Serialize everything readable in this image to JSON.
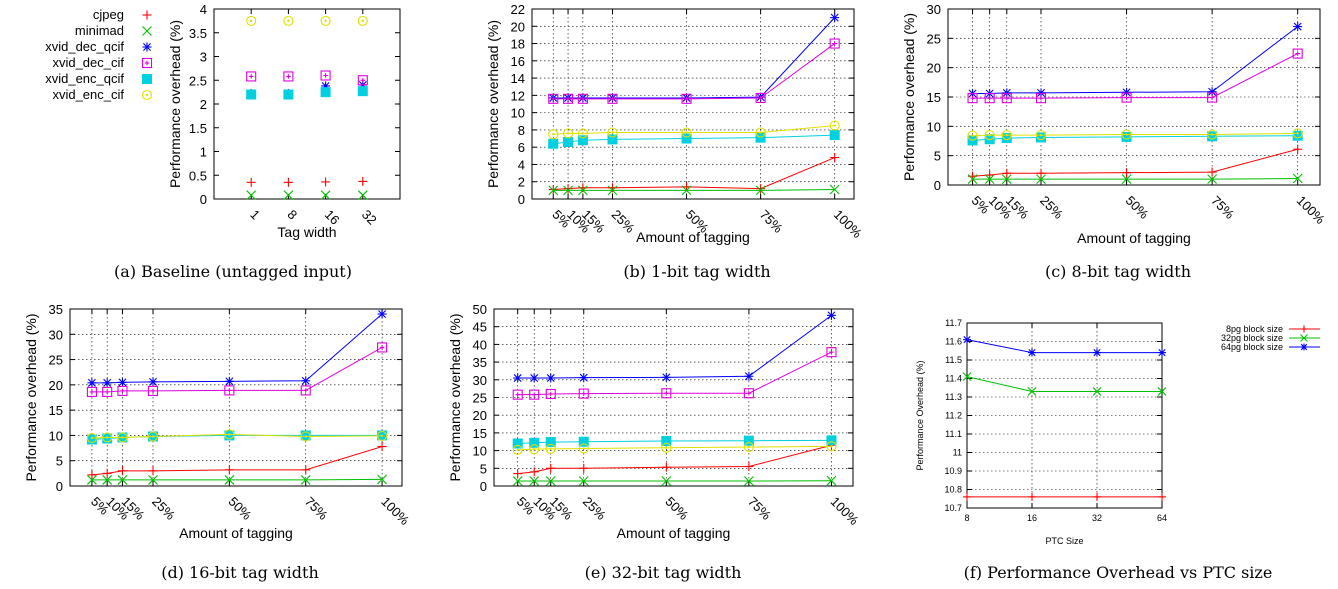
{
  "chart_data": [
    {
      "id": "a",
      "type": "scatter",
      "caption": "(a) Baseline (untagged input)",
      "xlabel": "Tag width",
      "ylabel": "Performance overhead (%)",
      "categories": [
        "1",
        "8",
        "16",
        "32"
      ],
      "ylim": [
        0,
        4
      ],
      "yticks": [
        0,
        0.5,
        1,
        1.5,
        2,
        2.5,
        3,
        3.5,
        4
      ],
      "legend_position": "left, outside plot",
      "series": [
        {
          "name": "cjpeg",
          "color": "#ff0000",
          "marker": "plus",
          "values": [
            0.35,
            0.35,
            0.36,
            0.37
          ]
        },
        {
          "name": "minimad",
          "color": "#00c000",
          "marker": "x",
          "values": [
            0.08,
            0.08,
            0.08,
            0.08
          ]
        },
        {
          "name": "xvid_dec_qcif",
          "color": "#0000ff",
          "marker": "star",
          "values": [
            2.22,
            2.22,
            2.38,
            2.4
          ]
        },
        {
          "name": "xvid_dec_cif",
          "color": "#e000e0",
          "marker": "boxplus",
          "values": [
            2.58,
            2.58,
            2.6,
            2.5
          ]
        },
        {
          "name": "xvid_enc_qcif",
          "color": "#00d0e0",
          "marker": "square",
          "values": [
            2.2,
            2.2,
            2.25,
            2.27
          ]
        },
        {
          "name": "xvid_enc_cif",
          "color": "#e0e000",
          "marker": "circledot",
          "values": [
            3.75,
            3.75,
            3.75,
            3.75
          ]
        }
      ]
    },
    {
      "id": "b",
      "type": "line",
      "caption": "(b) 1-bit tag width",
      "xlabel": "Amount of tagging",
      "ylabel": "Performance overhead (%)",
      "x": [
        5,
        10,
        15,
        25,
        50,
        75,
        100
      ],
      "xticklabels": [
        "5%",
        "10%",
        "15%",
        "25%",
        "50%",
        "75%",
        "100%"
      ],
      "ylim": [
        0,
        22
      ],
      "yticks": [
        0,
        2,
        4,
        6,
        8,
        10,
        12,
        14,
        16,
        18,
        20,
        22
      ],
      "grid": true,
      "series": [
        {
          "name": "cjpeg",
          "color": "#ff0000",
          "marker": "plus",
          "values": [
            1.1,
            1.2,
            1.3,
            1.3,
            1.4,
            1.2,
            4.8
          ]
        },
        {
          "name": "minimad",
          "color": "#00c000",
          "marker": "x",
          "values": [
            1.0,
            1.0,
            1.0,
            1.0,
            1.0,
            1.0,
            1.1
          ]
        },
        {
          "name": "xvid_dec_qcif",
          "color": "#0000ff",
          "marker": "star",
          "values": [
            11.7,
            11.7,
            11.7,
            11.7,
            11.7,
            11.8,
            21.0
          ]
        },
        {
          "name": "xvid_dec_cif",
          "color": "#e000e0",
          "marker": "boxplus",
          "values": [
            11.6,
            11.6,
            11.6,
            11.6,
            11.6,
            11.7,
            18.0
          ]
        },
        {
          "name": "xvid_enc_qcif",
          "color": "#00d0e0",
          "marker": "square",
          "values": [
            6.4,
            6.6,
            6.8,
            6.9,
            7.0,
            7.1,
            7.4
          ]
        },
        {
          "name": "xvid_enc_cif",
          "color": "#e0e000",
          "marker": "circledot",
          "values": [
            7.5,
            7.6,
            7.6,
            7.7,
            7.7,
            7.7,
            8.5
          ]
        }
      ]
    },
    {
      "id": "c",
      "type": "line",
      "caption": "(c) 8-bit tag width",
      "xlabel": "Amount of tagging",
      "ylabel": "Performance overhead (%)",
      "x": [
        5,
        10,
        15,
        25,
        50,
        75,
        100
      ],
      "xticklabels": [
        "5%",
        "10%",
        "15%",
        "25%",
        "50%",
        "75%",
        "100%"
      ],
      "ylim": [
        0,
        30
      ],
      "yticks": [
        0,
        5,
        10,
        15,
        20,
        25,
        30
      ],
      "grid": true,
      "series": [
        {
          "name": "cjpeg",
          "color": "#ff0000",
          "marker": "plus",
          "values": [
            1.5,
            1.7,
            2.0,
            2.0,
            2.1,
            2.2,
            6.1
          ]
        },
        {
          "name": "minimad",
          "color": "#00c000",
          "marker": "x",
          "values": [
            1.0,
            1.0,
            1.0,
            1.0,
            1.0,
            1.0,
            1.1
          ]
        },
        {
          "name": "xvid_dec_qcif",
          "color": "#0000ff",
          "marker": "star",
          "values": [
            15.6,
            15.6,
            15.7,
            15.7,
            15.8,
            15.9,
            27.0
          ]
        },
        {
          "name": "xvid_dec_cif",
          "color": "#e000e0",
          "marker": "boxplus",
          "values": [
            14.8,
            14.8,
            14.8,
            14.8,
            14.9,
            14.9,
            22.4
          ]
        },
        {
          "name": "xvid_enc_qcif",
          "color": "#00d0e0",
          "marker": "square",
          "values": [
            7.6,
            7.8,
            8.0,
            8.1,
            8.2,
            8.3,
            8.4
          ]
        },
        {
          "name": "xvid_enc_cif",
          "color": "#e0e000",
          "marker": "circledot",
          "values": [
            8.4,
            8.5,
            8.5,
            8.5,
            8.6,
            8.6,
            8.8
          ]
        }
      ]
    },
    {
      "id": "d",
      "type": "line",
      "caption": "(d) 16-bit tag width",
      "xlabel": "Amount of tagging",
      "ylabel": "Performance overhead (%)",
      "x": [
        5,
        10,
        15,
        25,
        50,
        75,
        100
      ],
      "xticklabels": [
        "5%",
        "10%",
        "15%",
        "25%",
        "50%",
        "75%",
        "100%"
      ],
      "ylim": [
        0,
        35
      ],
      "yticks": [
        0,
        5,
        10,
        15,
        20,
        25,
        30,
        35
      ],
      "grid": true,
      "series": [
        {
          "name": "cjpeg",
          "color": "#ff0000",
          "marker": "plus",
          "values": [
            2.2,
            2.5,
            3.0,
            3.0,
            3.2,
            3.2,
            7.8
          ]
        },
        {
          "name": "minimad",
          "color": "#00c000",
          "marker": "x",
          "values": [
            1.2,
            1.2,
            1.2,
            1.2,
            1.2,
            1.2,
            1.3
          ]
        },
        {
          "name": "xvid_dec_qcif",
          "color": "#0000ff",
          "marker": "star",
          "values": [
            20.4,
            20.4,
            20.5,
            20.6,
            20.7,
            20.8,
            34.0
          ]
        },
        {
          "name": "xvid_dec_cif",
          "color": "#e000e0",
          "marker": "boxplus",
          "values": [
            18.6,
            18.6,
            18.8,
            18.8,
            18.9,
            18.9,
            27.4
          ]
        },
        {
          "name": "xvid_enc_qcif",
          "color": "#00d0e0",
          "marker": "square",
          "values": [
            9.2,
            9.4,
            9.6,
            9.8,
            10.0,
            10.0,
            10.0
          ]
        },
        {
          "name": "xvid_enc_cif",
          "color": "#e0e000",
          "marker": "circledot",
          "values": [
            9.5,
            9.6,
            9.6,
            9.8,
            10.2,
            9.8,
            9.9
          ]
        }
      ]
    },
    {
      "id": "e",
      "type": "line",
      "caption": "(e) 32-bit tag width",
      "xlabel": "Amount of tagging",
      "ylabel": "Performance overhead (%)",
      "x": [
        5,
        10,
        15,
        25,
        50,
        75,
        100
      ],
      "xticklabels": [
        "5%",
        "10%",
        "15%",
        "25%",
        "50%",
        "75%",
        "100%"
      ],
      "ylim": [
        0,
        50
      ],
      "yticks": [
        0,
        5,
        10,
        15,
        20,
        25,
        30,
        35,
        40,
        45,
        50
      ],
      "grid": true,
      "series": [
        {
          "name": "cjpeg",
          "color": "#ff0000",
          "marker": "plus",
          "values": [
            3.5,
            4.0,
            5.0,
            5.0,
            5.3,
            5.5,
            11.5
          ]
        },
        {
          "name": "minimad",
          "color": "#00c000",
          "marker": "x",
          "values": [
            1.4,
            1.4,
            1.4,
            1.4,
            1.4,
            1.4,
            1.5
          ]
        },
        {
          "name": "xvid_dec_qcif",
          "color": "#0000ff",
          "marker": "star",
          "values": [
            30.5,
            30.5,
            30.5,
            30.6,
            30.7,
            31.0,
            48.2
          ]
        },
        {
          "name": "xvid_dec_cif",
          "color": "#e000e0",
          "marker": "boxplus",
          "values": [
            25.8,
            25.8,
            26.0,
            26.1,
            26.2,
            26.2,
            37.8
          ]
        },
        {
          "name": "xvid_enc_qcif",
          "color": "#00d0e0",
          "marker": "square",
          "values": [
            12.0,
            12.2,
            12.4,
            12.5,
            12.7,
            12.8,
            12.9
          ]
        },
        {
          "name": "xvid_enc_cif",
          "color": "#e0e000",
          "marker": "circledot",
          "values": [
            10.2,
            10.4,
            10.5,
            10.6,
            10.8,
            11.0,
            11.2
          ]
        }
      ]
    },
    {
      "id": "f",
      "type": "line",
      "caption": "(f) Performance Overhead vs PTC size",
      "xlabel": "PTC Size",
      "ylabel": "Performance Overhead (%)",
      "x": [
        8,
        16,
        32,
        64
      ],
      "xticklabels": [
        "8",
        "16",
        "32",
        "64"
      ],
      "ylim": [
        10.7,
        11.7
      ],
      "yticks": [
        10.7,
        10.8,
        10.9,
        11,
        11.1,
        11.2,
        11.3,
        11.4,
        11.5,
        11.6,
        11.7
      ],
      "grid": true,
      "legend_position": "right, outside plot",
      "series": [
        {
          "name": "8pg block size",
          "color": "#ff0000",
          "marker": "plus",
          "values": [
            10.76,
            10.76,
            10.76,
            10.76
          ]
        },
        {
          "name": "32pg block size",
          "color": "#00c000",
          "marker": "x",
          "values": [
            11.41,
            11.33,
            11.33,
            11.33
          ]
        },
        {
          "name": "64pg block size",
          "color": "#0000ff",
          "marker": "star",
          "values": [
            11.61,
            11.54,
            11.54,
            11.54
          ]
        }
      ]
    }
  ]
}
